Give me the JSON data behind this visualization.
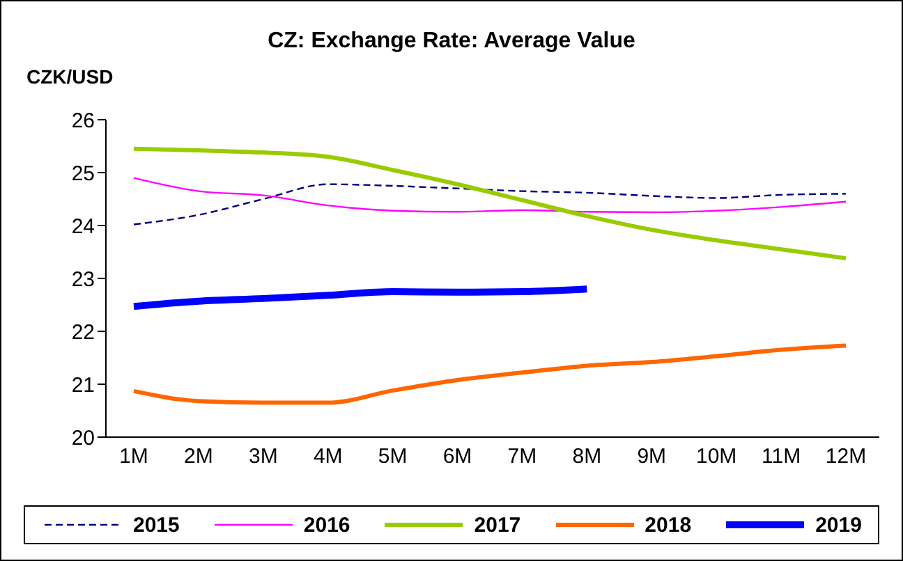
{
  "chart_data": {
    "type": "line",
    "title": "CZ: Exchange Rate: Average Value",
    "ylabel": "CZK/USD",
    "categories": [
      "1M",
      "2M",
      "3M",
      "4M",
      "5M",
      "6M",
      "7M",
      "8M",
      "9M",
      "10M",
      "11M",
      "12M"
    ],
    "ylim": [
      20,
      26
    ],
    "yticks": [
      20,
      21,
      22,
      23,
      24,
      25,
      26
    ],
    "grid": false,
    "legend": "bottom",
    "marker": "none",
    "series": [
      {
        "name": "2015",
        "color": "#000080",
        "line_style": "dashed",
        "values": [
          24.02,
          24.2,
          24.5,
          24.78,
          24.75,
          24.7,
          24.65,
          24.62,
          24.56,
          24.52,
          24.58,
          24.6
        ]
      },
      {
        "name": "2016",
        "color": "#ff00ff",
        "values": [
          24.9,
          24.65,
          24.57,
          24.38,
          24.28,
          24.26,
          24.29,
          24.26,
          24.25,
          24.28,
          24.35,
          24.45
        ]
      },
      {
        "name": "2017",
        "color": "#99cc00",
        "values": [
          25.45,
          25.42,
          25.38,
          25.3,
          25.05,
          24.78,
          24.48,
          24.18,
          23.92,
          23.72,
          23.55,
          23.38
        ]
      },
      {
        "name": "2018",
        "color": "#ff6600",
        "values": [
          20.87,
          20.68,
          20.65,
          20.65,
          20.88,
          21.08,
          21.22,
          21.35,
          21.42,
          21.53,
          21.65,
          21.73
        ]
      },
      {
        "name": "2019",
        "color": "#0000ff",
        "values": [
          22.47,
          22.57,
          22.62,
          22.68,
          22.75,
          22.74,
          22.75,
          22.8,
          null,
          null,
          null,
          null
        ]
      }
    ]
  }
}
